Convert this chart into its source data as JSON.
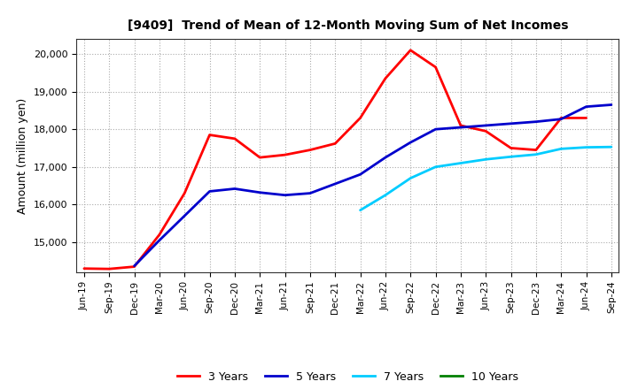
{
  "title": "[9409]  Trend of Mean of 12-Month Moving Sum of Net Incomes",
  "ylabel": "Amount (million yen)",
  "ylim": [
    14200,
    20400
  ],
  "yticks": [
    15000,
    16000,
    17000,
    18000,
    19000,
    20000
  ],
  "plot_bg": "#ffffff",
  "fig_bg": "#ffffff",
  "grid_color": "#aaaaaa",
  "x_labels": [
    "Jun-19",
    "Sep-19",
    "Dec-19",
    "Mar-20",
    "Jun-20",
    "Sep-20",
    "Dec-20",
    "Mar-21",
    "Jun-21",
    "Sep-21",
    "Dec-21",
    "Mar-22",
    "Jun-22",
    "Sep-22",
    "Dec-22",
    "Mar-23",
    "Jun-23",
    "Sep-23",
    "Dec-23",
    "Mar-24",
    "Jun-24",
    "Sep-24"
  ],
  "series": {
    "3 Years": {
      "color": "#ff0000",
      "data_x": [
        0,
        1,
        2,
        3,
        4,
        5,
        6,
        7,
        8,
        9,
        10,
        11,
        12,
        13,
        14,
        15,
        16,
        17,
        18,
        19,
        20
      ],
      "data_y": [
        14300,
        14290,
        14350,
        15200,
        16300,
        17850,
        17750,
        17250,
        17320,
        17450,
        17620,
        18300,
        19350,
        20100,
        19650,
        18100,
        17950,
        17500,
        17450,
        18300,
        18300
      ]
    },
    "5 Years": {
      "color": "#0000cc",
      "data_x": [
        2,
        3,
        4,
        5,
        6,
        7,
        8,
        9,
        10,
        11,
        12,
        13,
        14,
        15,
        16,
        17,
        18,
        19,
        20,
        21
      ],
      "data_y": [
        14370,
        15050,
        15700,
        16350,
        16420,
        16320,
        16250,
        16300,
        16550,
        16800,
        17250,
        17650,
        18000,
        18050,
        18100,
        18150,
        18200,
        18270,
        18600,
        18650
      ]
    },
    "7 Years": {
      "color": "#00ccff",
      "data_x": [
        11,
        12,
        13,
        14,
        15,
        16,
        17,
        18,
        19,
        20,
        21
      ],
      "data_y": [
        15850,
        16250,
        16700,
        17000,
        17100,
        17200,
        17270,
        17330,
        17480,
        17520,
        17530
      ]
    },
    "10 Years": {
      "color": "#008000",
      "data_x": [],
      "data_y": []
    }
  },
  "legend_labels": [
    "3 Years",
    "5 Years",
    "7 Years",
    "10 Years"
  ],
  "legend_colors": [
    "#ff0000",
    "#0000cc",
    "#00ccff",
    "#008000"
  ]
}
